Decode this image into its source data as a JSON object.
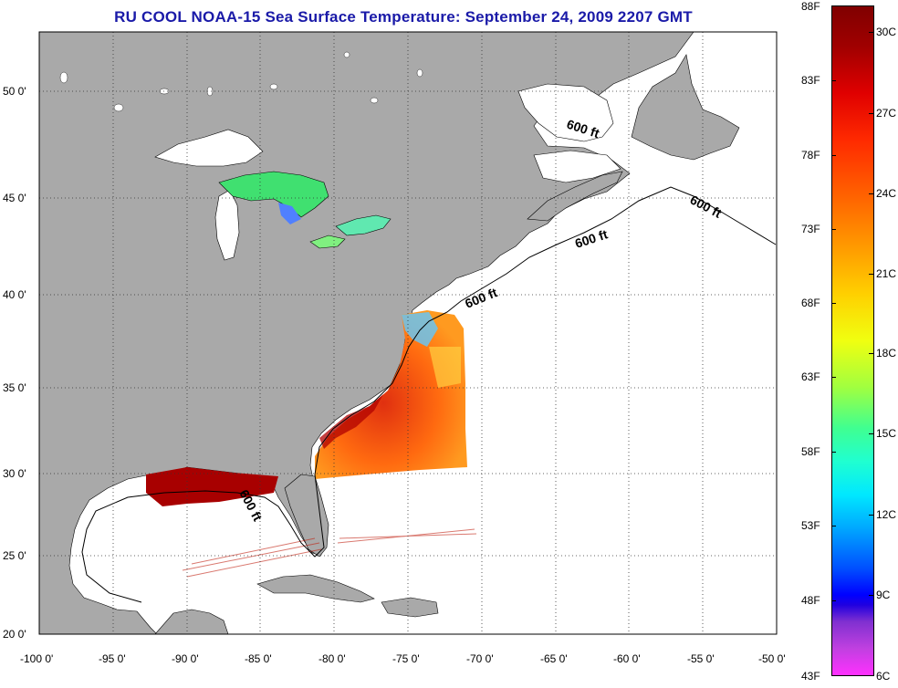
{
  "title": "RU COOL  NOAA-15  Sea Surface Temperature:  September 24, 2009 2207 GMT",
  "isobath_label": "600 ft",
  "lat_labels": [
    "50 0'",
    "45 0'",
    "40 0'",
    "35 0'",
    "30 0'",
    "25 0'",
    "20 0'"
  ],
  "lon_labels": [
    "-100 0'",
    "-95 0'",
    "-90 0'",
    "-85 0'",
    "-80 0'",
    "-75 0'",
    "-70 0'",
    "-65 0'",
    "-60 0'",
    "-55 0'",
    "-50 0'"
  ],
  "colorbar": {
    "fahrenheit": [
      "88F",
      "83F",
      "78F",
      "73F",
      "68F",
      "63F",
      "58F",
      "53F",
      "48F",
      "43F"
    ],
    "celsius": [
      "30C",
      "27C",
      "24C",
      "21C",
      "18C",
      "15C",
      "12C",
      "9C",
      "6C"
    ]
  },
  "colors": {
    "land": "#a9a9a9",
    "ocean": "#ffffff",
    "title": "#1a1aa8",
    "sst_warm": "#e83a10",
    "sst_hot": "#a80000",
    "lakes": "#40e070"
  }
}
